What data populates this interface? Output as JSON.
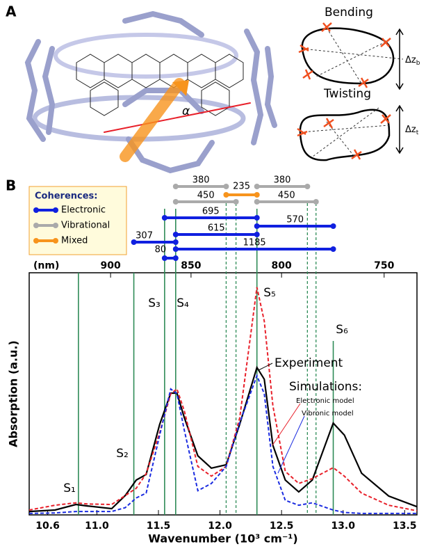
{
  "panel_a": {
    "label": "A",
    "alpha": "α",
    "bending": "Bending",
    "twisting": "Twisting",
    "delta_b": {
      "base": "Δz",
      "sub": "b"
    },
    "delta_t": {
      "base": "Δz",
      "sub": "t"
    }
  },
  "chart_data": {
    "type": "line",
    "panel_label": "B",
    "x_label": "Wavenumber (10³ cm⁻¹)",
    "y_label": "Absorption (a.u.)",
    "x2_label": "(nm)",
    "xlim": [
      10.45,
      13.6
    ],
    "ylim": [
      0,
      1
    ],
    "xticks": [
      10.6,
      {
        "value": 11,
        "label": "11.0"
      },
      11.5,
      {
        "value": 12,
        "label": "12.0"
      },
      12.5,
      {
        "value": 13,
        "label": "13.0"
      },
      13.5
    ],
    "x2ticks": [
      900,
      850,
      800,
      750
    ],
    "x": [
      10.45,
      10.66,
      10.83,
      10.92,
      11.12,
      11.23,
      11.32,
      11.4,
      11.51,
      11.6,
      11.65,
      11.71,
      11.82,
      11.93,
      12.05,
      12.16,
      12.3,
      12.36,
      12.43,
      12.53,
      12.64,
      12.75,
      12.92,
      13.01,
      13.15,
      13.37,
      13.6
    ],
    "series": [
      {
        "name": "Experiment",
        "color": "#000000",
        "dash": false,
        "values": [
          0.014,
          0.02,
          0.043,
          0.037,
          0.026,
          0.08,
          0.144,
          0.167,
          0.374,
          0.503,
          0.503,
          0.402,
          0.244,
          0.193,
          0.207,
          0.374,
          0.609,
          0.56,
          0.287,
          0.144,
          0.095,
          0.144,
          0.379,
          0.33,
          0.172,
          0.078,
          0.034
        ]
      },
      {
        "name": "Electronic model",
        "color": "#e8202a",
        "dash": true,
        "values": [
          0.02,
          0.04,
          0.05,
          0.045,
          0.043,
          0.08,
          0.11,
          0.17,
          0.34,
          0.5,
          0.52,
          0.43,
          0.2,
          0.16,
          0.2,
          0.4,
          0.94,
          0.8,
          0.45,
          0.18,
          0.13,
          0.15,
          0.195,
          0.16,
          0.09,
          0.04,
          0.017
        ]
      },
      {
        "name": "Vibronic model",
        "color": "#1a2be0",
        "dash": true,
        "values": [
          0.006,
          0.008,
          0.014,
          0.014,
          0.014,
          0.03,
          0.07,
          0.09,
          0.33,
          0.52,
          0.5,
          0.35,
          0.1,
          0.13,
          0.2,
          0.38,
          0.575,
          0.5,
          0.2,
          0.06,
          0.04,
          0.05,
          0.02,
          0.01,
          0.006,
          0.006,
          0.006
        ]
      }
    ],
    "simulations_label": "Simulations:",
    "state_color": "#2e8b57",
    "states": [
      {
        "name": "S₁",
        "x": 10.85
      },
      {
        "name": "S₂",
        "x": 11.3
      },
      {
        "name": "S₃",
        "x": 11.55
      },
      {
        "name": "S₄",
        "x": 11.64
      },
      {
        "name": "S₅",
        "x": 12.3
      },
      {
        "name": "S₆",
        "x": 12.92
      }
    ],
    "vibrational_levels": [
      12.05,
      12.13,
      12.71,
      12.78
    ],
    "coherences": {
      "title": "Coherences:",
      "types": [
        {
          "name": "Electronic",
          "color": "#1020e0"
        },
        {
          "name": "Vibrational",
          "color": "#aaaaaa"
        },
        {
          "name": "Mixed",
          "color": "#f7941d"
        }
      ],
      "items": [
        {
          "value": 380,
          "type": 1,
          "from": 11.64,
          "to": 12.05
        },
        {
          "value": 235,
          "type": 2,
          "from": 12.05,
          "to": 12.3
        },
        {
          "value": 380,
          "type": 1,
          "from": 12.3,
          "to": 12.71
        },
        {
          "value": 450,
          "type": 1,
          "from": 11.64,
          "to": 12.13
        },
        {
          "value": 450,
          "type": 1,
          "from": 12.3,
          "to": 12.78
        },
        {
          "value": 695,
          "type": 0,
          "from": 11.55,
          "to": 12.3
        },
        {
          "value": 570,
          "type": 0,
          "from": 12.3,
          "to": 12.92
        },
        {
          "value": 615,
          "type": 0,
          "from": 11.64,
          "to": 12.3
        },
        {
          "value": 307,
          "type": 0,
          "from": 11.3,
          "to": 11.64
        },
        {
          "value": 1185,
          "type": 0,
          "from": 11.64,
          "to": 12.92
        },
        {
          "value": 80,
          "type": 0,
          "from": 11.55,
          "to": 11.64
        }
      ]
    }
  }
}
